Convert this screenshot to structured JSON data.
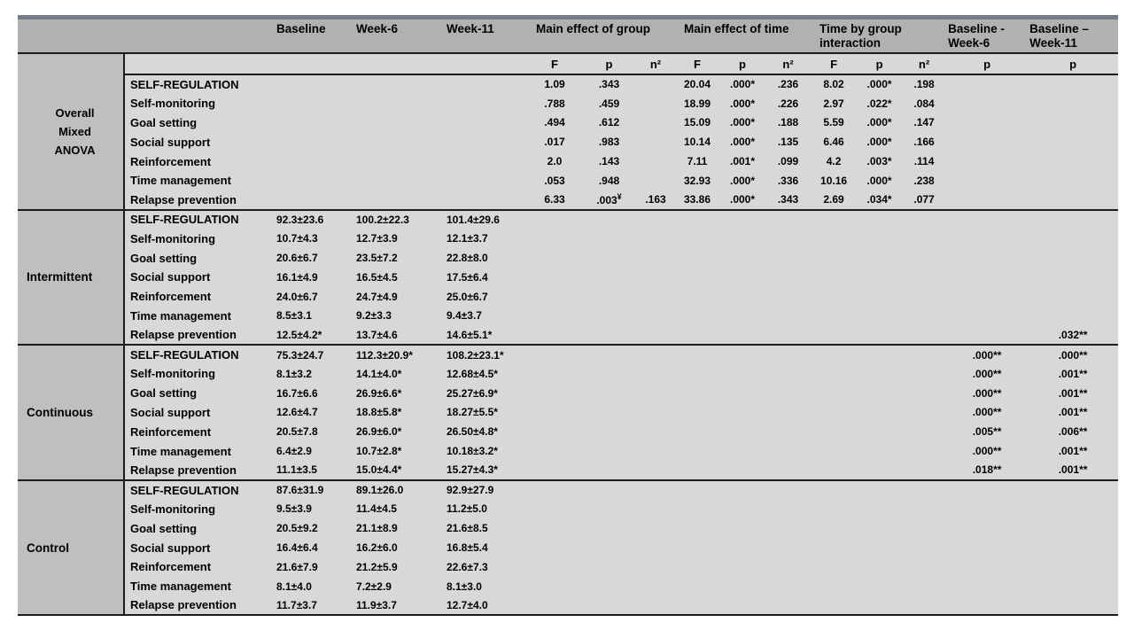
{
  "style": {
    "header_bg": "#b1b1b1",
    "group_col_bg": "#bfbfbf",
    "body_bg": "#d8d8d8",
    "border_color": "#1c1c1c",
    "top_bar_color": "#767c87",
    "text_color": "#000000"
  },
  "table": {
    "header": {
      "baseline": "Baseline",
      "week6": "Week-6",
      "week11": "Week-11",
      "main_effect_group": "Main effect of group",
      "main_effect_time": "Main effect of time",
      "time_by_group": "Time by group interaction",
      "baseline_week6": "Baseline - Week-6",
      "baseline_week11": "Baseline – Week-11",
      "f": "F",
      "p": "p",
      "eta_sq": "n²"
    },
    "subheader_keys": [
      "f",
      "p",
      "eta_sq",
      "f",
      "p",
      "eta_sq",
      "f",
      "p",
      "eta_sq",
      "p",
      "p"
    ],
    "groups": [
      {
        "id": "overall-mixed-anova",
        "label": "Overall Mixed ANOVA",
        "label_lines": [
          "Overall",
          "Mixed",
          "ANOVA"
        ],
        "rows": [
          {
            "label": "SELF-REGULATION",
            "cells": [
              "",
              "",
              "",
              "1.09",
              ".343",
              "",
              "20.04",
              ".000*",
              ".236",
              "8.02",
              ".000*",
              ".198",
              "",
              ""
            ]
          },
          {
            "label": "Self-monitoring",
            "cells": [
              "",
              "",
              "",
              ".788",
              ".459",
              "",
              "18.99",
              ".000*",
              ".226",
              "2.97",
              ".022*",
              ".084",
              "",
              ""
            ]
          },
          {
            "label": "Goal setting",
            "cells": [
              "",
              "",
              "",
              ".494",
              ".612",
              "",
              "15.09",
              ".000*",
              ".188",
              "5.59",
              ".000*",
              ".147",
              "",
              ""
            ]
          },
          {
            "label": "Social support",
            "cells": [
              "",
              "",
              "",
              ".017",
              ".983",
              "",
              "10.14",
              ".000*",
              ".135",
              "6.46",
              ".000*",
              ".166",
              "",
              ""
            ]
          },
          {
            "label": "Reinforcement",
            "cells": [
              "",
              "",
              "",
              "2.0",
              ".143",
              "",
              "7.11",
              ".001*",
              ".099",
              "4.2",
              ".003*",
              ".114",
              "",
              ""
            ]
          },
          {
            "label": "Time management",
            "cells": [
              "",
              "",
              "",
              ".053",
              ".948",
              "",
              "32.93",
              ".000*",
              ".336",
              "10.16",
              ".000*",
              ".238",
              "",
              ""
            ]
          },
          {
            "label": "Relapse prevention",
            "cells": [
              "",
              "",
              "",
              "6.33",
              ".003¥",
              ".163",
              "33.86",
              ".000*",
              ".343",
              "2.69",
              ".034*",
              ".077",
              "",
              ""
            ]
          }
        ]
      },
      {
        "id": "intermittent",
        "label": "Intermittent",
        "label_lines": [
          "Intermittent"
        ],
        "rows": [
          {
            "label": "SELF-REGULATION",
            "cells": [
              "92.3±23.6",
              "100.2±22.3",
              "101.4±29.6",
              "",
              "",
              "",
              "",
              "",
              "",
              "",
              "",
              "",
              "",
              ""
            ]
          },
          {
            "label": "Self-monitoring",
            "cells": [
              "10.7±4.3",
              "12.7±3.9",
              "12.1±3.7",
              "",
              "",
              "",
              "",
              "",
              "",
              "",
              "",
              "",
              "",
              ""
            ]
          },
          {
            "label": "Goal setting",
            "cells": [
              "20.6±6.7",
              "23.5±7.2",
              "22.8±8.0",
              "",
              "",
              "",
              "",
              "",
              "",
              "",
              "",
              "",
              "",
              ""
            ]
          },
          {
            "label": "Social support",
            "cells": [
              "16.1±4.9",
              "16.5±4.5",
              "17.5±6.4",
              "",
              "",
              "",
              "",
              "",
              "",
              "",
              "",
              "",
              "",
              ""
            ]
          },
          {
            "label": "Reinforcement",
            "cells": [
              "24.0±6.7",
              "24.7±4.9",
              "25.0±6.7",
              "",
              "",
              "",
              "",
              "",
              "",
              "",
              "",
              "",
              "",
              ""
            ]
          },
          {
            "label": "Time management",
            "cells": [
              "8.5±3.1",
              "9.2±3.3",
              "9.4±3.7",
              "",
              "",
              "",
              "",
              "",
              "",
              "",
              "",
              "",
              "",
              ""
            ]
          },
          {
            "label": "Relapse prevention",
            "cells": [
              "12.5±4.2*",
              "13.7±4.6",
              "14.6±5.1*",
              "",
              "",
              "",
              "",
              "",
              "",
              "",
              "",
              "",
              "",
              ".032**"
            ]
          }
        ]
      },
      {
        "id": "continuous",
        "label": "Continuous",
        "label_lines": [
          "Continuous"
        ],
        "rows": [
          {
            "label": "SELF-REGULATION",
            "cells": [
              "75.3±24.7",
              "112.3±20.9*",
              "108.2±23.1*",
              "",
              "",
              "",
              "",
              "",
              "",
              "",
              "",
              "",
              ".000**",
              ".000**"
            ]
          },
          {
            "label": "Self-monitoring",
            "cells": [
              "8.1±3.2",
              "14.1±4.0*",
              "12.68±4.5*",
              "",
              "",
              "",
              "",
              "",
              "",
              "",
              "",
              "",
              ".000**",
              ".001**"
            ]
          },
          {
            "label": "Goal setting",
            "cells": [
              "16.7±6.6",
              "26.9±6.6*",
              "25.27±6.9*",
              "",
              "",
              "",
              "",
              "",
              "",
              "",
              "",
              "",
              ".000**",
              ".001**"
            ]
          },
          {
            "label": "Social support",
            "cells": [
              "12.6±4.7",
              "18.8±5.8*",
              "18.27±5.5*",
              "",
              "",
              "",
              "",
              "",
              "",
              "",
              "",
              "",
              ".000**",
              ".001**"
            ]
          },
          {
            "label": "Reinforcement",
            "cells": [
              "20.5±7.8",
              "26.9±6.0*",
              "26.50±4.8*",
              "",
              "",
              "",
              "",
              "",
              "",
              "",
              "",
              "",
              ".005**",
              ".006**"
            ]
          },
          {
            "label": "Time management",
            "cells": [
              "6.4±2.9",
              "10.7±2.8*",
              "10.18±3.2*",
              "",
              "",
              "",
              "",
              "",
              "",
              "",
              "",
              "",
              ".000**",
              ".001**"
            ]
          },
          {
            "label": "Relapse prevention",
            "cells": [
              "11.1±3.5",
              "15.0±4.4*",
              "15.27±4.3*",
              "",
              "",
              "",
              "",
              "",
              "",
              "",
              "",
              "",
              ".018**",
              ".001**"
            ]
          }
        ]
      },
      {
        "id": "control",
        "label": "Control",
        "label_lines": [
          "Control"
        ],
        "rows": [
          {
            "label": "SELF-REGULATION",
            "cells": [
              "87.6±31.9",
              "89.1±26.0",
              "92.9±27.9",
              "",
              "",
              "",
              "",
              "",
              "",
              "",
              "",
              "",
              "",
              ""
            ]
          },
          {
            "label": "Self-monitoring",
            "cells": [
              "9.5±3.9",
              "11.4±4.5",
              "11.2±5.0",
              "",
              "",
              "",
              "",
              "",
              "",
              "",
              "",
              "",
              "",
              ""
            ]
          },
          {
            "label": "Goal setting",
            "cells": [
              "20.5±9.2",
              "21.1±8.9",
              "21.6±8.5",
              "",
              "",
              "",
              "",
              "",
              "",
              "",
              "",
              "",
              "",
              ""
            ]
          },
          {
            "label": "Social support",
            "cells": [
              "16.4±6.4",
              "16.2±6.0",
              "16.8±5.4",
              "",
              "",
              "",
              "",
              "",
              "",
              "",
              "",
              "",
              "",
              ""
            ]
          },
          {
            "label": "Reinforcement",
            "cells": [
              "21.6±7.9",
              "21.2±5.9",
              "22.6±7.3",
              "",
              "",
              "",
              "",
              "",
              "",
              "",
              "",
              "",
              "",
              ""
            ]
          },
          {
            "label": "Time management",
            "cells": [
              "8.1±4.0",
              "7.2±2.9",
              "8.1±3.0",
              "",
              "",
              "",
              "",
              "",
              "",
              "",
              "",
              "",
              "",
              ""
            ]
          },
          {
            "label": "Relapse prevention",
            "cells": [
              "11.7±3.7",
              "11.9±3.7",
              "12.7±4.0",
              "",
              "",
              "",
              "",
              "",
              "",
              "",
              "",
              "",
              "",
              ""
            ]
          }
        ]
      }
    ]
  }
}
